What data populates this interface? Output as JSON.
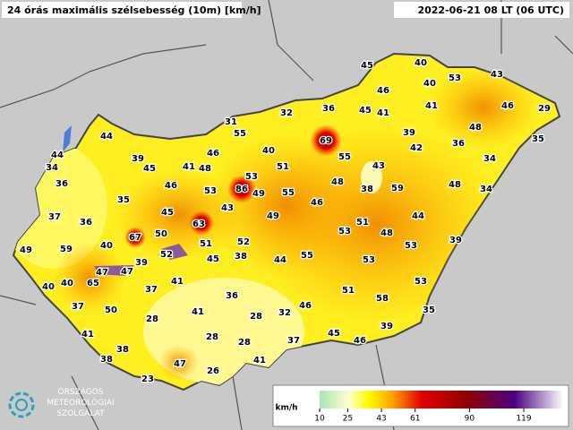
{
  "header": {
    "title": "24 órás maximális szélsebesség (10m) [km/h]",
    "timestamp": "2022-06-21 08 LT (06 UTC)"
  },
  "stations": [
    45,
    40,
    43,
    46,
    40,
    53,
    46,
    29,
    32,
    36,
    45,
    41,
    41,
    31,
    55,
    48,
    39,
    35,
    44,
    69,
    42,
    36,
    40,
    44,
    39,
    46,
    55,
    34,
    43,
    34,
    45,
    41,
    48,
    51,
    53,
    36,
    46,
    86,
    49,
    55,
    48,
    38,
    59,
    48,
    34,
    35,
    53,
    43,
    46,
    37,
    45,
    49,
    36,
    63,
    51,
    44,
    53,
    48,
    50,
    67,
    49,
    59,
    40,
    51,
    52,
    53,
    39,
    52,
    38,
    45,
    44,
    55,
    53,
    39,
    47,
    47,
    41,
    53,
    40,
    40,
    65,
    37,
    51,
    58,
    36,
    37,
    50,
    46,
    41,
    32,
    35,
    28,
    28,
    39,
    41,
    28,
    28,
    37,
    45,
    46,
    38,
    41,
    38,
    47,
    26,
    23
  ],
  "legend": {
    "unit": "km/h",
    "ticks": [
      10,
      25,
      43,
      61,
      90,
      119
    ]
  },
  "logo": [
    "ORSZÁGOS",
    "METEOROLÓGIAI",
    "SZOLGÁLAT"
  ]
}
